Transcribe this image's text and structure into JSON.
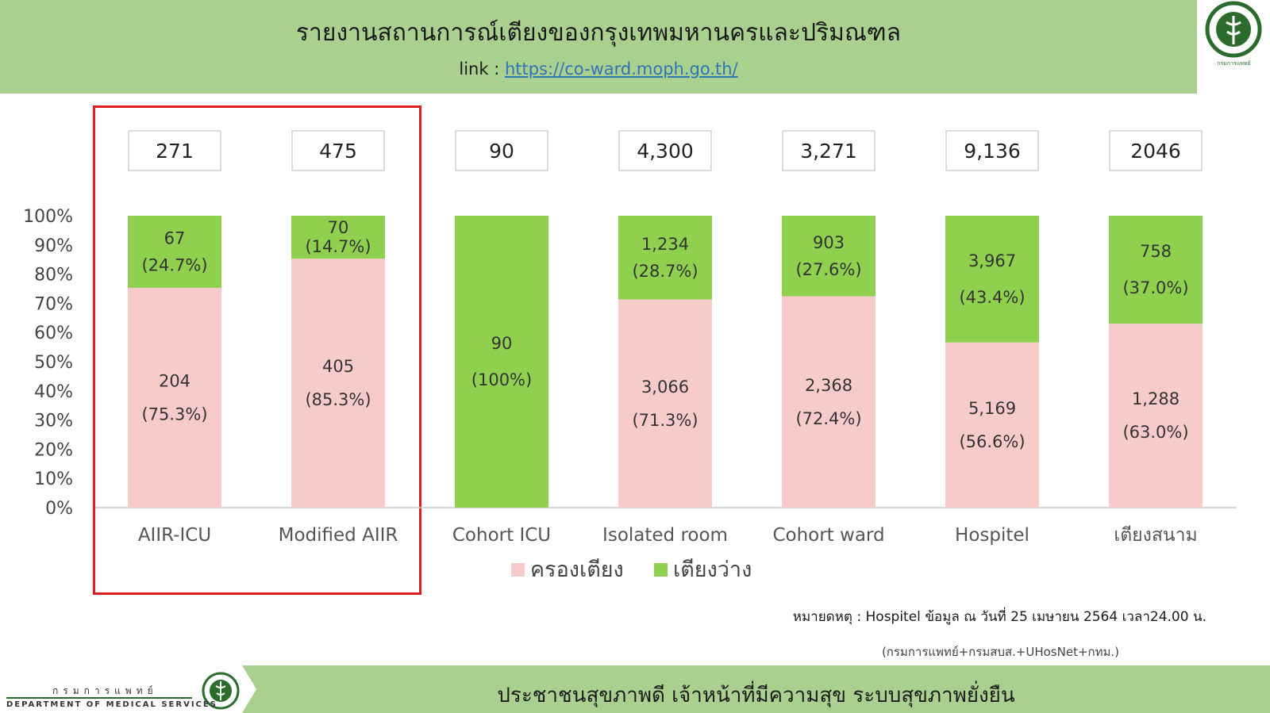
{
  "header": {
    "title": "รายงานสถานการณ์เตียงของกรุงเทพมหานครและปริมณฑล",
    "link_label": "link :",
    "link_url": "https://co-ward.moph.go.th/",
    "logo_caption": "กรมการแพทย์"
  },
  "chart_data": {
    "type": "bar",
    "stacked": "percent",
    "categories": [
      "AIIR-ICU",
      "Modified AIIR",
      "Cohort ICU",
      "Isolated room",
      "Cohort ward",
      "Hospitel",
      "เตียงสนาม"
    ],
    "totals": [
      "271",
      "475",
      "90",
      "4,300",
      "3,271",
      "9,136",
      "2046"
    ],
    "y_ticks": [
      "0%",
      "10%",
      "20%",
      "30%",
      "40%",
      "50%",
      "60%",
      "70%",
      "80%",
      "90%",
      "100%"
    ],
    "ylim": [
      0,
      100
    ],
    "series": [
      {
        "name": "ครองเตียง",
        "color": "#f8cbcb",
        "percent": [
          75.3,
          85.3,
          0,
          71.3,
          72.4,
          56.6,
          63.0
        ],
        "count_labels": [
          "204",
          "405",
          "",
          "3,066",
          "2,368",
          "5,169",
          "1,288"
        ],
        "percent_labels": [
          "(75.3%)",
          "(85.3%)",
          "",
          "(71.3%)",
          "(72.4%)",
          "(56.6%)",
          "(63.0%)"
        ]
      },
      {
        "name": "เตียงว่าง",
        "color": "#8fd14f",
        "percent": [
          24.7,
          14.7,
          100,
          28.7,
          27.6,
          43.4,
          37.0
        ],
        "count_labels": [
          "67",
          "70",
          "90",
          "1,234",
          "903",
          "3,967",
          "758"
        ],
        "percent_labels": [
          "(24.7%)",
          "(14.7%)",
          "(100%)",
          "(28.7%)",
          "(27.6%)",
          "(43.4%)",
          "(37.0%)"
        ]
      }
    ],
    "legend_position": "bottom",
    "grid": false
  },
  "note": "หมายดหตุ : Hospitel ข้อมูล ณ วันที่ 25 เมษายน 2564 เวลา24.00 น.",
  "source": "(กรมการแพทย์+กรมสบส.+UHosNet+กทม.)",
  "footer": {
    "slogan": "ประชาชนสุขภาพดี เจ้าหน้าที่มีความสุข ระบบสุขภาพยั่งยืน",
    "dept_thai": "กรมการแพทย์",
    "dept_eng": "DEPARTMENT OF MEDICAL SERVICES"
  }
}
